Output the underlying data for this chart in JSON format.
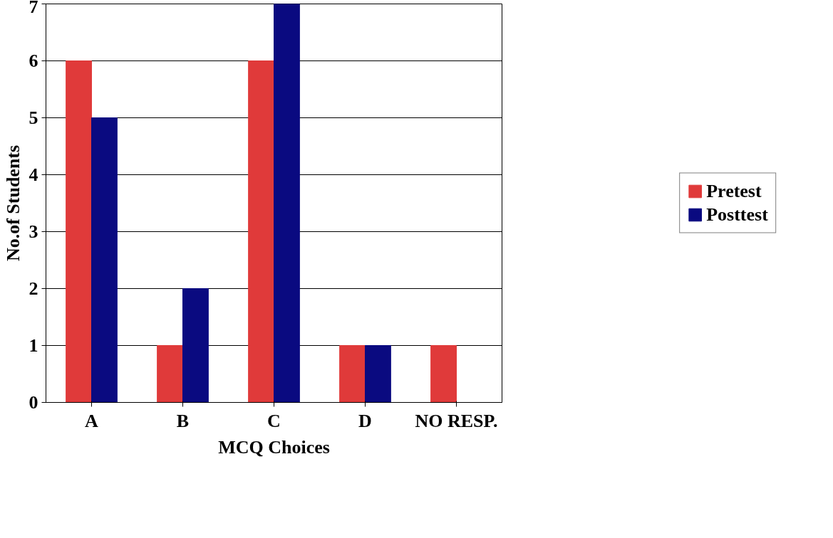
{
  "chart_data": {
    "type": "bar",
    "xlabel": "MCQ Choices",
    "ylabel": "No.of Students",
    "categories": [
      "A",
      "B",
      "C",
      "D",
      "NO RESP."
    ],
    "series": [
      {
        "name": "Pretest",
        "color": "#e03a3a",
        "values": [
          6,
          1,
          6,
          1,
          1
        ]
      },
      {
        "name": "Posttest",
        "color": "#0a0a80",
        "values": [
          5,
          2,
          7,
          1,
          0
        ]
      }
    ],
    "ylim": [
      0,
      7
    ],
    "yticks": [
      0,
      1,
      2,
      3,
      4,
      5,
      6,
      7
    ],
    "grid": "y",
    "legend": "right"
  }
}
